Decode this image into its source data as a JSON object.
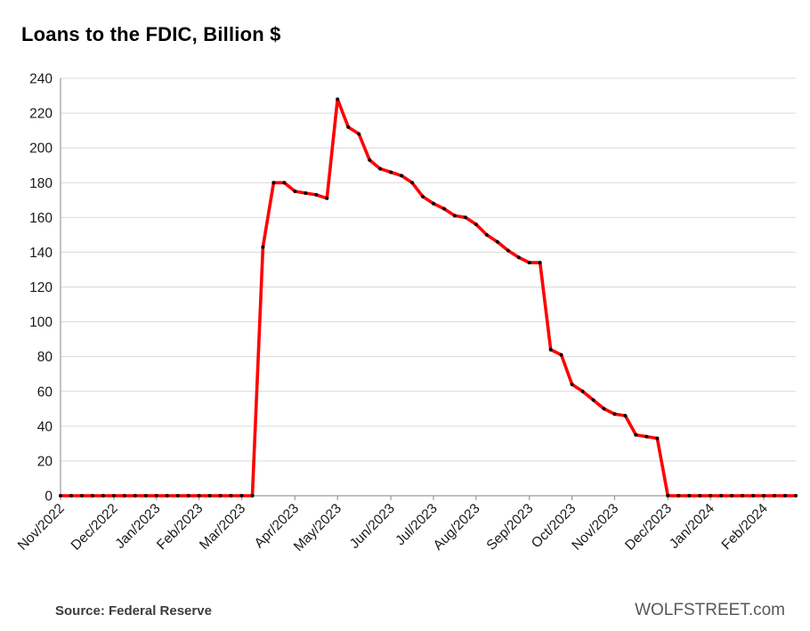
{
  "title": "Loans to the FDIC, Billion $",
  "footer": {
    "source": "Source: Federal Reserve",
    "brand": "WOLFSTREET.com"
  },
  "chart_data": {
    "type": "line",
    "title": "Loans to the FDIC, Billion $",
    "xlabel": "",
    "ylabel": "",
    "ylim": [
      0,
      240
    ],
    "y_tick_step": 20,
    "grid": true,
    "legend": "none",
    "line_color": "#ff0000",
    "marker_color": "#000000",
    "grid_color": "#d9d9d9",
    "axis_color": "#9a9a9a",
    "x_tick_labels": [
      "Nov/2022",
      "Dec/2022",
      "Jan/2023",
      "Feb/2023",
      "Mar/2023",
      "Apr/2023",
      "May/2023",
      "Jun/2023",
      "Jul/2023",
      "Aug/2023",
      "Sep/2023",
      "Oct/2023",
      "Nov/2023",
      "Dec/2023",
      "Jan/2024",
      "Feb/2024"
    ],
    "x_tick_indices": [
      0,
      5,
      9,
      13,
      17,
      22,
      26,
      31,
      35,
      39,
      44,
      48,
      52,
      57,
      61,
      66
    ],
    "x_unit": "weekly observations",
    "values": [
      0,
      0,
      0,
      0,
      0,
      0,
      0,
      0,
      0,
      0,
      0,
      0,
      0,
      0,
      0,
      0,
      0,
      0,
      0,
      143,
      180,
      180,
      175,
      174,
      173,
      171,
      228,
      212,
      208,
      193,
      188,
      186,
      184,
      180,
      172,
      168,
      165,
      161,
      160,
      156,
      150,
      146,
      141,
      137,
      134,
      134,
      84,
      81,
      64,
      60,
      55,
      50,
      47,
      46,
      35,
      34,
      33,
      0,
      0,
      0,
      0,
      0,
      0,
      0,
      0,
      0,
      0,
      0,
      0,
      0
    ]
  }
}
